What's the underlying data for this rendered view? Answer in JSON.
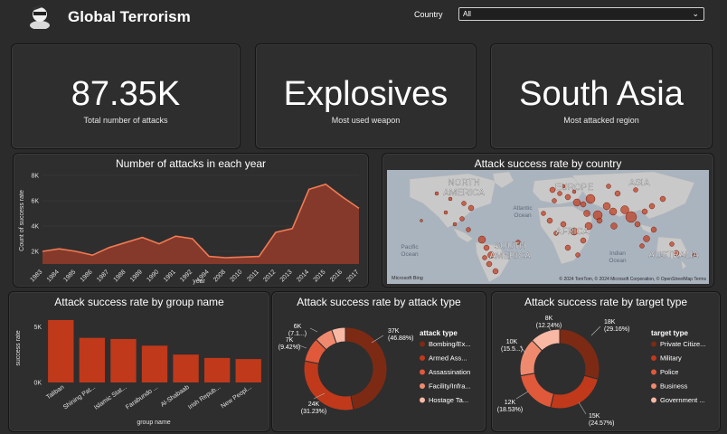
{
  "header": {
    "title": "Global Terrorism",
    "filter_label": "Country",
    "filter_value": "All"
  },
  "kpis": [
    {
      "value": "87.35K",
      "label": "Total number of attacks"
    },
    {
      "value": "Explosives",
      "label": "Most used weapon"
    },
    {
      "value": "South Asia",
      "label": "Most attacked region"
    }
  ],
  "colors": {
    "accent": "#c0391b",
    "area_fill": "#8a3a2a",
    "area_line": "#f07a55",
    "background": "#2b2b2b"
  },
  "year_chart": {
    "title": "Number of attacks in each year",
    "ylabel": "Count of success rate",
    "xlabel": "year",
    "yticks": [
      "2K",
      "4K",
      "6K",
      "8K"
    ],
    "chart_data": {
      "type": "area",
      "x": [
        "1983",
        "1984",
        "1985",
        "1986",
        "1987",
        "1988",
        "1989",
        "1990",
        "1991",
        "1992",
        "1994",
        "2008",
        "2010",
        "2011",
        "2012",
        "2013",
        "2014",
        "2015",
        "2016",
        "2017"
      ],
      "values": [
        2000,
        2200,
        2000,
        1700,
        2300,
        2700,
        3100,
        2600,
        3200,
        3000,
        1600,
        1500,
        1550,
        1600,
        3500,
        3800,
        6900,
        7300,
        6300,
        5400
      ],
      "ylim": [
        1000,
        8000
      ]
    }
  },
  "map_panel": {
    "title": "Attack success rate by country",
    "labels": [
      "NORTH AMERICA",
      "EUROPE",
      "ASIA",
      "AFRICA",
      "SOUTH AMERICA",
      "AUSTRALIA"
    ],
    "ocean_labels": [
      "Atlantic Ocean",
      "Indian Ocean",
      "Pacific Ocean"
    ],
    "credit": "© 2024 TomTom, © 2024 Microsoft Corporation, © OpenStreetMap Terms",
    "bing": "Microsoft Bing"
  },
  "group_chart": {
    "title": "Attack success rate by group name",
    "ylabel": "success rate",
    "xlabel": "group name",
    "yticks": [
      "0K",
      "5K"
    ],
    "chart_data": {
      "type": "bar",
      "categories": [
        "Taliban",
        "Shining Pat...",
        "Islamic Stat...",
        "Farabundo ...",
        "Al-Shabaab",
        "Irish Repub...",
        "New Peopl..."
      ],
      "values": [
        5600,
        4000,
        3900,
        3300,
        2500,
        2200,
        2100
      ],
      "ylim": [
        0,
        6000
      ]
    }
  },
  "attack_type_chart": {
    "title": "Attack success rate by attack type",
    "legend_title": "attack type",
    "chart_data": {
      "type": "pie",
      "categories": [
        "Bombing/Ex...",
        "Armed Ass...",
        "Assassination",
        "Facility/Infra...",
        "Hostage Ta..."
      ],
      "values": [
        46.88,
        31.23,
        9.42,
        7.1,
        5.37
      ],
      "labels": [
        "37K (46.88%)",
        "24K (31.23%)",
        "7K (9.42%)",
        "6K (7.1...)"
      ],
      "colors": [
        "#7d2a14",
        "#c0391b",
        "#e0593a",
        "#f08a6e",
        "#f8b8a4"
      ]
    }
  },
  "target_type_chart": {
    "title": "Attack success rate by target type",
    "legend_title": "target type",
    "chart_data": {
      "type": "pie",
      "categories": [
        "Private Citize...",
        "Military",
        "Police",
        "Business",
        "Government ..."
      ],
      "values": [
        29.16,
        24.57,
        18.53,
        15.5,
        12.24
      ],
      "labels": [
        "18K (29.16%)",
        "15K (24.57%)",
        "12K (18.53%)",
        "10K (15.5...)",
        "8K (12.24%)"
      ],
      "colors": [
        "#7d2a14",
        "#c0391b",
        "#e0593a",
        "#f08a6e",
        "#f8b8a4"
      ]
    }
  }
}
